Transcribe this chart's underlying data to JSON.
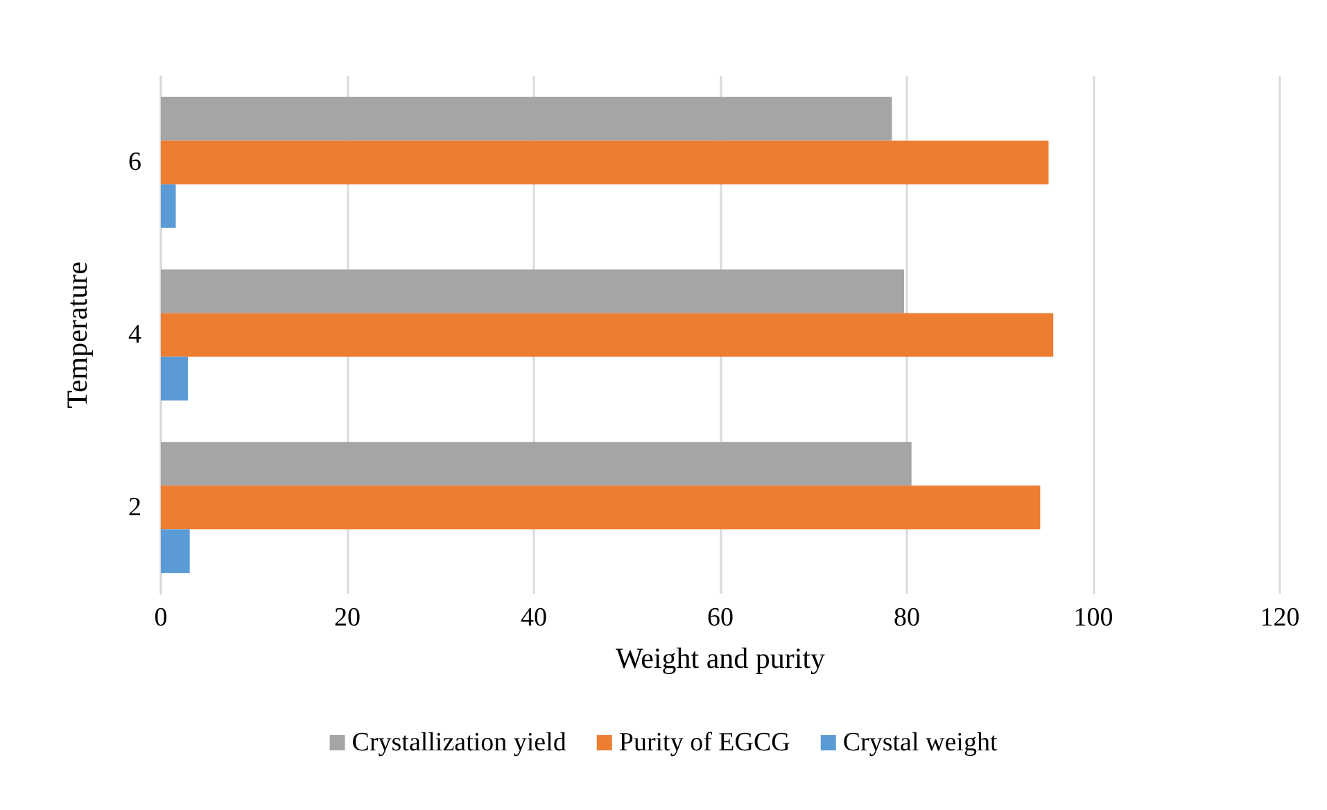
{
  "chart_data": {
    "type": "bar",
    "orientation": "horizontal",
    "xlabel": "Weight and purity",
    "ylabel": "Temperature",
    "categories": [
      "6",
      "4",
      "2"
    ],
    "series": [
      {
        "name": "Crystallization yield",
        "color": "#a5a5a5",
        "values": [
          78.4,
          79.7,
          80.5
        ]
      },
      {
        "name": "Purity of EGCG",
        "color": "#ed7d31",
        "values": [
          95.2,
          95.7,
          94.3
        ]
      },
      {
        "name": "Crystal weight",
        "color": "#5b9bd5",
        "values": [
          1.6,
          2.9,
          3.1
        ]
      }
    ],
    "xlim": [
      0,
      120
    ],
    "xticks": [
      0,
      20,
      40,
      60,
      80,
      100,
      120
    ],
    "grid": "x",
    "legend": "bottom"
  }
}
